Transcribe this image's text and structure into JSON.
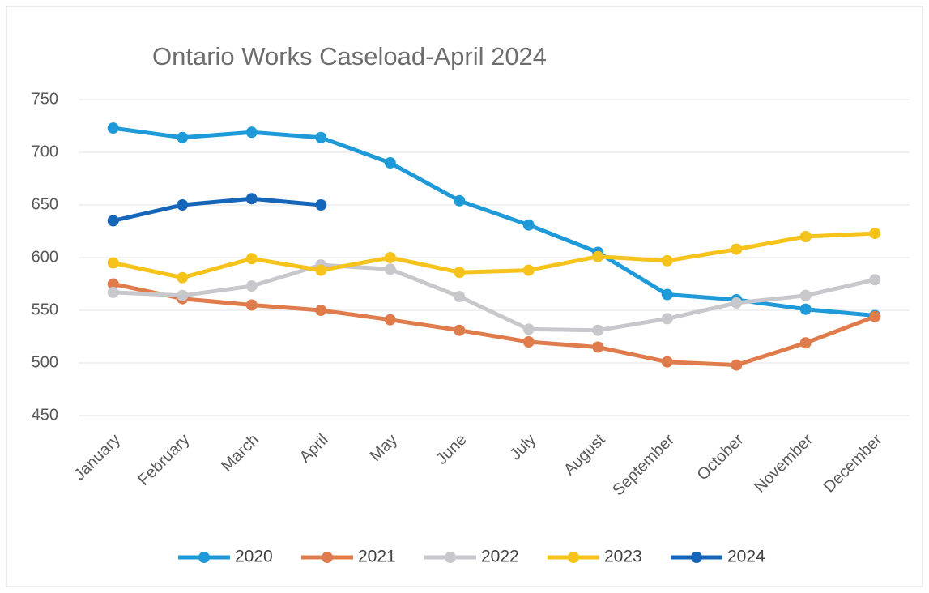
{
  "chart_data": {
    "type": "line",
    "title": "Ontario Works Caseload-April 2024",
    "categories": [
      "January",
      "February",
      "March",
      "April",
      "May",
      "June",
      "July",
      "August",
      "September",
      "October",
      "November",
      "December"
    ],
    "series": [
      {
        "name": "2020",
        "color": "#1f9ad8",
        "values": [
          723,
          714,
          719,
          714,
          690,
          654,
          631,
          605,
          565,
          560,
          551,
          545
        ]
      },
      {
        "name": "2021",
        "color": "#e07b4c",
        "values": [
          575,
          561,
          555,
          550,
          541,
          531,
          520,
          515,
          501,
          498,
          519,
          544
        ]
      },
      {
        "name": "2022",
        "color": "#c8c8cc",
        "values": [
          567,
          564,
          573,
          593,
          589,
          563,
          532,
          531,
          542,
          557,
          564,
          579
        ]
      },
      {
        "name": "2023",
        "color": "#f5c31c",
        "values": [
          595,
          581,
          599,
          588,
          600,
          586,
          588,
          601,
          597,
          608,
          620,
          623
        ]
      },
      {
        "name": "2024",
        "color": "#1565b8",
        "values": [
          635,
          650,
          656,
          650,
          null,
          null,
          null,
          null,
          null,
          null,
          null,
          null
        ]
      }
    ],
    "ylim": [
      450,
      750
    ],
    "yticks": [
      450,
      500,
      550,
      600,
      650,
      700,
      750
    ],
    "grid": true
  }
}
